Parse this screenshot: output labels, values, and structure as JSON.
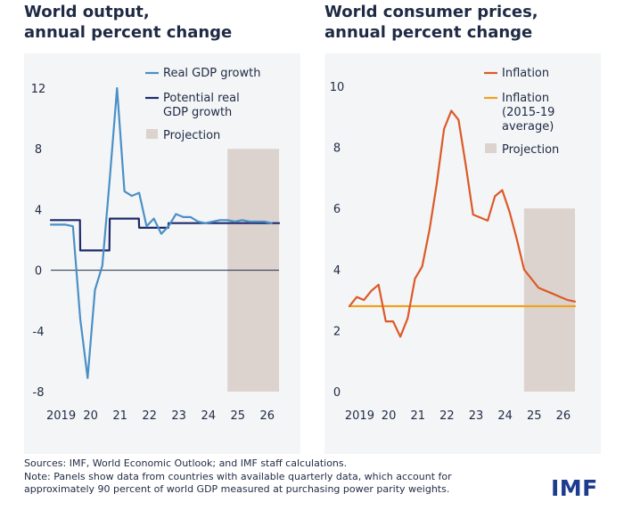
{
  "colors": {
    "real_gdp": "#4a90c6",
    "potential_gdp": "#1f2a6b",
    "inflation": "#dc5a28",
    "inflation_avg": "#f0a21e",
    "projection": "#dcd3cf",
    "logo": "#1d3c8f"
  },
  "footer": {
    "sources": "Sources: IMF, World Economic Outlook; and IMF staff calculations.",
    "note_line1": "Note: Panels show data from countries with available quarterly data, which account for",
    "note_line2": "approximately 90 percent of world GDP measured at purchasing power parity weights."
  },
  "logo_text": "IMF",
  "chart_data": [
    {
      "type": "line",
      "title": "World output,\nannual percent change",
      "xlabel": "",
      "ylabel": "",
      "x_ticks": [
        "2019",
        "20",
        "21",
        "22",
        "23",
        "24",
        "25",
        "26"
      ],
      "y_ticks": [
        "12",
        "8",
        "4",
        "0",
        "-4",
        "-8"
      ],
      "ylim": [
        -8,
        12
      ],
      "xlim": [
        2019.0,
        2026.75
      ],
      "projection": {
        "label": "Projection",
        "x_start": 2025.0,
        "x_end": 2026.75,
        "y_top": 8
      },
      "zero_line": true,
      "legend_position": "top-right",
      "series": [
        {
          "name": "Real GDP growth",
          "color_key": "real_gdp",
          "x": [
            2019.0,
            2019.25,
            2019.5,
            2019.75,
            2020.0,
            2020.25,
            2020.5,
            2020.75,
            2021.0,
            2021.25,
            2021.5,
            2021.75,
            2022.0,
            2022.25,
            2022.5,
            2022.75,
            2023.0,
            2023.25,
            2023.5,
            2023.75,
            2024.0,
            2024.25,
            2024.5,
            2024.75,
            2025.0,
            2025.25,
            2025.5,
            2025.75,
            2026.0,
            2026.25,
            2026.5
          ],
          "values": [
            3.0,
            3.0,
            3.0,
            2.9,
            -3.2,
            -7.1,
            -1.3,
            0.3,
            6.0,
            12.0,
            5.2,
            4.9,
            5.1,
            2.9,
            3.4,
            2.4,
            2.9,
            3.7,
            3.5,
            3.5,
            3.2,
            3.1,
            3.2,
            3.3,
            3.3,
            3.2,
            3.3,
            3.2,
            3.2,
            3.2,
            3.1
          ]
        },
        {
          "name": "Potential real\nGDP growth",
          "color_key": "potential_gdp",
          "x": [
            2019.0,
            2019.99,
            2020.0,
            2020.99,
            2021.0,
            2021.99,
            2022.0,
            2022.99,
            2023.0,
            2026.75
          ],
          "values": [
            3.3,
            3.3,
            1.3,
            1.3,
            3.4,
            3.4,
            2.8,
            2.8,
            3.1,
            3.1
          ]
        }
      ]
    },
    {
      "type": "line",
      "title": "World consumer prices,\nannual percent change",
      "xlabel": "",
      "ylabel": "",
      "x_ticks": [
        "2019",
        "20",
        "21",
        "22",
        "23",
        "24",
        "25",
        "26"
      ],
      "y_ticks": [
        "10",
        "8",
        "6",
        "4",
        "2",
        "0"
      ],
      "ylim": [
        0,
        10
      ],
      "xlim": [
        2019.0,
        2026.75
      ],
      "projection": {
        "label": "Projection",
        "x_start": 2025.0,
        "x_end": 2026.75,
        "y_top": 6
      },
      "zero_line": false,
      "legend_position": "top-right",
      "series": [
        {
          "name": "Inflation",
          "color_key": "inflation",
          "x": [
            2019.0,
            2019.25,
            2019.5,
            2019.75,
            2020.0,
            2020.25,
            2020.5,
            2020.75,
            2021.0,
            2021.25,
            2021.5,
            2021.75,
            2022.0,
            2022.25,
            2022.5,
            2022.75,
            2023.0,
            2023.25,
            2023.5,
            2023.75,
            2024.0,
            2024.25,
            2024.5,
            2024.75,
            2025.0,
            2025.25,
            2025.5,
            2025.75,
            2026.0,
            2026.25,
            2026.5,
            2026.75
          ],
          "values": [
            2.8,
            3.1,
            3.0,
            3.3,
            3.5,
            2.3,
            2.3,
            1.8,
            2.4,
            3.7,
            4.1,
            5.3,
            6.8,
            8.6,
            9.2,
            8.9,
            7.4,
            5.8,
            5.7,
            5.6,
            6.4,
            6.6,
            5.9,
            5.0,
            4.0,
            3.7,
            3.4,
            3.3,
            3.2,
            3.1,
            3.0,
            2.95
          ]
        },
        {
          "name": "Inflation\n(2015-19\naverage)",
          "color_key": "inflation_avg",
          "x": [
            2019.0,
            2026.75
          ],
          "values": [
            2.8,
            2.8
          ]
        }
      ]
    }
  ]
}
